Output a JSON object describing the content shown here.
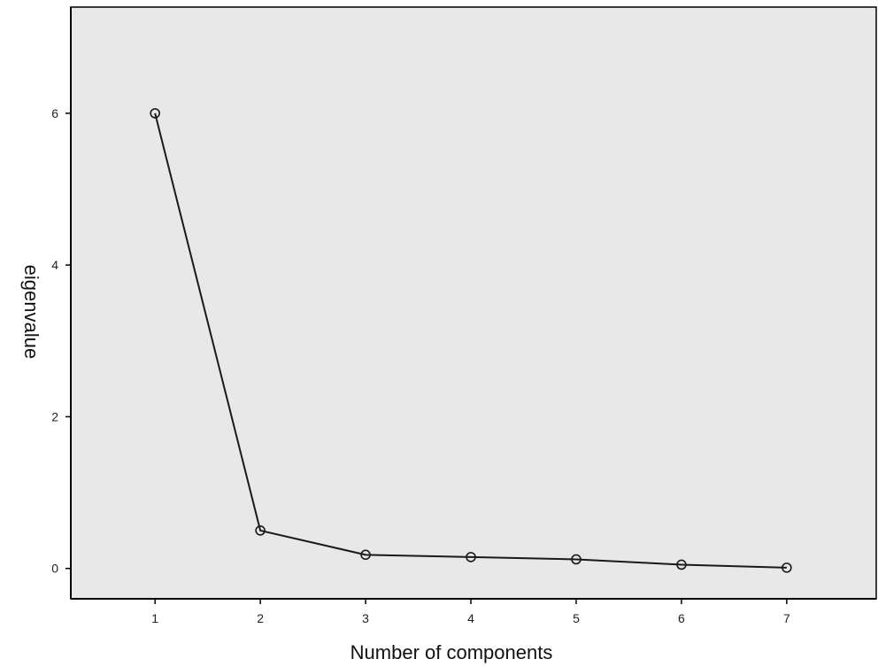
{
  "chart_data": {
    "type": "line",
    "title": "",
    "xlabel": "Number of components",
    "ylabel": "eigenvalue",
    "x": [
      1,
      2,
      3,
      4,
      5,
      6,
      7
    ],
    "series": [
      {
        "values": [
          6.0,
          0.5,
          0.18,
          0.15,
          0.12,
          0.05,
          0.01
        ]
      }
    ],
    "xlim": [
      0.2,
      7.85
    ],
    "ylim": [
      -0.4,
      7.4
    ],
    "xticks": [
      "1",
      "2",
      "3",
      "4",
      "5",
      "6",
      "7"
    ],
    "yticks": [
      "0",
      "2",
      "4",
      "6"
    ],
    "grid": false,
    "marker": "open-circle",
    "colors": {
      "plot_background": "#e8e8e8",
      "line": "#1a1a1a",
      "axis": "#000000"
    }
  }
}
